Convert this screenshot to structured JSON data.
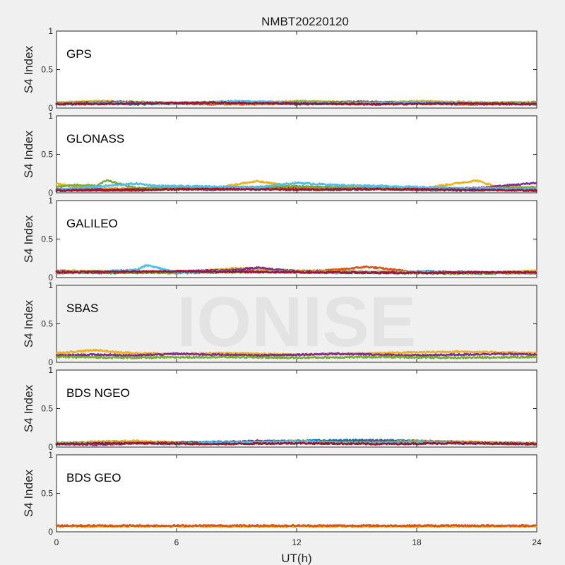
{
  "chart_data": {
    "type": "scatter",
    "title": "NMBT20220120",
    "xlabel": "UT(h)",
    "ylabel": "S4 Index",
    "xlim": [
      0,
      24
    ],
    "ylim": [
      0,
      1
    ],
    "x_ticks": [
      "0",
      "6",
      "12",
      "18",
      "24"
    ],
    "y_ticks": [
      "0",
      "0.5",
      "1"
    ],
    "watermark": "IONISE",
    "colors": [
      "#0072BD",
      "#D95319",
      "#EDB120",
      "#7E2F8E",
      "#77AC30",
      "#4DBEEE",
      "#A2142F"
    ],
    "panels": [
      {
        "label": "GPS",
        "series": [
          {
            "color": "#0072BD",
            "x": [
              0,
              2,
              4,
              6,
              8,
              10,
              12,
              14,
              16,
              18,
              20,
              22,
              24
            ],
            "y": [
              0.05,
              0.06,
              0.05,
              0.06,
              0.05,
              0.07,
              0.05,
              0.06,
              0.05,
              0.06,
              0.05,
              0.06,
              0.05
            ]
          },
          {
            "color": "#D95319",
            "x": [
              0,
              3,
              6,
              9,
              12,
              15,
              18,
              21,
              24
            ],
            "y": [
              0.06,
              0.07,
              0.06,
              0.05,
              0.06,
              0.07,
              0.06,
              0.05,
              0.06
            ]
          },
          {
            "color": "#EDB120",
            "x": [
              0,
              2,
              4,
              6,
              8,
              10,
              12,
              14,
              16,
              18,
              20,
              22,
              24
            ],
            "y": [
              0.07,
              0.09,
              0.08,
              0.07,
              0.08,
              0.07,
              0.09,
              0.08,
              0.07,
              0.09,
              0.08,
              0.07,
              0.08
            ]
          },
          {
            "color": "#7E2F8E",
            "x": [
              0,
              3,
              6,
              9,
              12,
              15,
              18,
              21,
              24
            ],
            "y": [
              0.06,
              0.08,
              0.06,
              0.07,
              0.06,
              0.08,
              0.07,
              0.06,
              0.07
            ]
          },
          {
            "color": "#77AC30",
            "x": [
              0,
              4,
              8,
              12,
              16,
              20,
              24
            ],
            "y": [
              0.06,
              0.07,
              0.06,
              0.08,
              0.07,
              0.06,
              0.07
            ]
          },
          {
            "color": "#4DBEEE",
            "x": [
              0,
              3,
              6,
              9,
              12,
              15,
              18,
              21,
              24
            ],
            "y": [
              0.05,
              0.07,
              0.06,
              0.09,
              0.07,
              0.06,
              0.08,
              0.06,
              0.05
            ]
          },
          {
            "color": "#A2142F",
            "x": [
              0,
              4,
              8,
              12,
              16,
              20,
              24
            ],
            "y": [
              0.05,
              0.06,
              0.07,
              0.06,
              0.05,
              0.06,
              0.05
            ]
          }
        ]
      },
      {
        "label": "GLONASS",
        "series": [
          {
            "color": "#0072BD",
            "x": [
              0,
              2,
              4,
              6,
              8,
              10,
              12,
              14,
              16,
              18,
              20,
              22,
              24
            ],
            "y": [
              0.03,
              0.04,
              0.03,
              0.05,
              0.04,
              0.06,
              0.05,
              0.04,
              0.05,
              0.04,
              0.03,
              0.04,
              0.03
            ]
          },
          {
            "color": "#D95319",
            "x": [
              0,
              3,
              6,
              9,
              12,
              15,
              18,
              21,
              24
            ],
            "y": [
              0.04,
              0.03,
              0.05,
              0.06,
              0.05,
              0.06,
              0.04,
              0.05,
              0.06
            ]
          },
          {
            "color": "#EDB120",
            "x": [
              0,
              1,
              2,
              4,
              6,
              8,
              10,
              12,
              14,
              16,
              18,
              21,
              22,
              24
            ],
            "y": [
              0.12,
              0.08,
              0.06,
              0.05,
              0.08,
              0.07,
              0.15,
              0.08,
              0.07,
              0.06,
              0.05,
              0.16,
              0.08,
              0.07
            ]
          },
          {
            "color": "#7E2F8E",
            "x": [
              0,
              3,
              6,
              9,
              12,
              15,
              18,
              21,
              24
            ],
            "y": [
              0.05,
              0.04,
              0.06,
              0.07,
              0.08,
              0.06,
              0.05,
              0.06,
              0.13
            ]
          },
          {
            "color": "#77AC30",
            "x": [
              0,
              1,
              2,
              2.5,
              4,
              8,
              12,
              16,
              20,
              24
            ],
            "y": [
              0.08,
              0.1,
              0.09,
              0.16,
              0.06,
              0.07,
              0.08,
              0.06,
              0.05,
              0.07
            ]
          },
          {
            "color": "#4DBEEE",
            "x": [
              0,
              4,
              5,
              8,
              10,
              12,
              14,
              16,
              20,
              24
            ],
            "y": [
              0.04,
              0.12,
              0.09,
              0.08,
              0.07,
              0.13,
              0.1,
              0.09,
              0.06,
              0.05
            ]
          },
          {
            "color": "#A2142F",
            "x": [
              0,
              4,
              8,
              12,
              16,
              20,
              24
            ],
            "y": [
              0.03,
              0.04,
              0.05,
              0.04,
              0.05,
              0.04,
              0.03
            ]
          }
        ]
      },
      {
        "label": "GALILEO",
        "series": [
          {
            "color": "#0072BD",
            "x": [
              0,
              3,
              6,
              9,
              12,
              15,
              18,
              21,
              24
            ],
            "y": [
              0.07,
              0.06,
              0.07,
              0.08,
              0.07,
              0.06,
              0.08,
              0.07,
              0.06
            ]
          },
          {
            "color": "#D95319",
            "x": [
              0,
              4,
              8,
              10,
              12,
              14,
              15.5,
              18,
              21,
              24
            ],
            "y": [
              0.08,
              0.07,
              0.09,
              0.11,
              0.08,
              0.1,
              0.14,
              0.07,
              0.06,
              0.08
            ]
          },
          {
            "color": "#EDB120",
            "x": [
              0,
              3,
              6,
              9,
              12,
              15,
              18,
              21,
              24
            ],
            "y": [
              0.09,
              0.08,
              0.07,
              0.12,
              0.09,
              0.08,
              0.07,
              0.06,
              0.09
            ]
          },
          {
            "color": "#7E2F8E",
            "x": [
              0,
              3,
              6,
              9,
              10,
              12,
              15,
              18,
              21,
              24
            ],
            "y": [
              0.08,
              0.07,
              0.08,
              0.1,
              0.13,
              0.08,
              0.07,
              0.06,
              0.07,
              0.06
            ]
          },
          {
            "color": "#77AC30",
            "x": [
              0,
              3,
              6,
              9,
              12,
              15,
              18,
              21,
              24
            ],
            "y": [
              0.06,
              0.07,
              0.06,
              0.07,
              0.08,
              0.07,
              0.06,
              0.05,
              0.06
            ]
          },
          {
            "color": "#4DBEEE",
            "x": [
              0,
              2,
              4,
              4.5,
              6,
              9,
              12,
              15,
              18,
              21,
              24
            ],
            "y": [
              0.07,
              0.08,
              0.1,
              0.16,
              0.07,
              0.08,
              0.07,
              0.06,
              0.07,
              0.06,
              0.07
            ]
          },
          {
            "color": "#A2142F",
            "x": [
              0,
              6,
              12,
              18,
              24
            ],
            "y": [
              0.07,
              0.08,
              0.07,
              0.06,
              0.07
            ]
          }
        ]
      },
      {
        "label": "SBAS",
        "series": [
          {
            "color": "#EDB120",
            "x": [
              0,
              1,
              2,
              3,
              4,
              6,
              8,
              10,
              12,
              14,
              16,
              18,
              20,
              22,
              24
            ],
            "y": [
              0.12,
              0.14,
              0.16,
              0.13,
              0.12,
              0.11,
              0.12,
              0.11,
              0.1,
              0.11,
              0.12,
              0.13,
              0.14,
              0.13,
              0.12
            ]
          },
          {
            "color": "#7E2F8E",
            "x": [
              0,
              2,
              4,
              6,
              8,
              10,
              12,
              14,
              16,
              18,
              20,
              22,
              24
            ],
            "y": [
              0.09,
              0.1,
              0.09,
              0.11,
              0.1,
              0.09,
              0.1,
              0.11,
              0.1,
              0.09,
              0.1,
              0.11,
              0.1
            ]
          },
          {
            "color": "#77AC30",
            "x": [
              0,
              4,
              8,
              12,
              16,
              20,
              24
            ],
            "y": [
              0.07,
              0.06,
              0.07,
              0.06,
              0.07,
              0.06,
              0.07
            ]
          }
        ]
      },
      {
        "label": "BDS NGEO",
        "series": [
          {
            "color": "#0072BD",
            "x": [
              0,
              3,
              6,
              9,
              12,
              15,
              18,
              21,
              24
            ],
            "y": [
              0.04,
              0.05,
              0.06,
              0.07,
              0.08,
              0.09,
              0.08,
              0.06,
              0.05
            ]
          },
          {
            "color": "#D95319",
            "x": [
              0,
              4,
              8,
              12,
              16,
              20,
              24
            ],
            "y": [
              0.05,
              0.06,
              0.05,
              0.07,
              0.06,
              0.05,
              0.04
            ]
          },
          {
            "color": "#EDB120",
            "x": [
              0,
              2,
              4,
              6,
              8,
              10,
              12,
              14,
              16,
              18,
              20,
              22,
              24
            ],
            "y": [
              0.05,
              0.07,
              0.08,
              0.06,
              0.05,
              0.07,
              0.08,
              0.06,
              0.07,
              0.08,
              0.07,
              0.06,
              0.05
            ]
          },
          {
            "color": "#7E2F8E",
            "x": [
              0,
              2,
              4,
              6,
              8,
              10,
              12,
              14,
              16,
              18,
              20,
              22,
              24
            ],
            "y": [
              0.04,
              0.03,
              0.05,
              0.06,
              0.05,
              0.08,
              0.07,
              0.06,
              0.08,
              0.07,
              0.06,
              0.05,
              0.04
            ]
          },
          {
            "color": "#77AC30",
            "x": [
              0,
              3,
              6,
              9,
              12,
              15,
              18,
              21,
              24
            ],
            "y": [
              0.05,
              0.06,
              0.05,
              0.06,
              0.07,
              0.06,
              0.07,
              0.05,
              0.04
            ]
          },
          {
            "color": "#4DBEEE",
            "x": [
              0,
              3,
              6,
              9,
              12,
              15,
              18,
              21,
              24
            ],
            "y": [
              0.04,
              0.05,
              0.04,
              0.06,
              0.07,
              0.05,
              0.06,
              0.05,
              0.04
            ]
          },
          {
            "color": "#A2142F",
            "x": [
              0,
              4,
              8,
              12,
              16,
              20,
              24
            ],
            "y": [
              0.04,
              0.05,
              0.04,
              0.05,
              0.04,
              0.05,
              0.04
            ]
          }
        ]
      },
      {
        "label": "BDS GEO",
        "series": [
          {
            "color": "#EDB120",
            "x": [
              0,
              2,
              4,
              6,
              8,
              10,
              12,
              14,
              16,
              18,
              20,
              22,
              24
            ],
            "y": [
              0.07,
              0.07,
              0.07,
              0.07,
              0.07,
              0.07,
              0.07,
              0.07,
              0.07,
              0.07,
              0.07,
              0.07,
              0.07
            ]
          },
          {
            "color": "#D95319",
            "x": [
              0,
              2,
              4,
              6,
              8,
              10,
              12,
              14,
              16,
              18,
              20,
              22,
              24
            ],
            "y": [
              0.08,
              0.08,
              0.08,
              0.08,
              0.08,
              0.08,
              0.08,
              0.08,
              0.08,
              0.08,
              0.08,
              0.08,
              0.08
            ]
          }
        ]
      }
    ]
  }
}
